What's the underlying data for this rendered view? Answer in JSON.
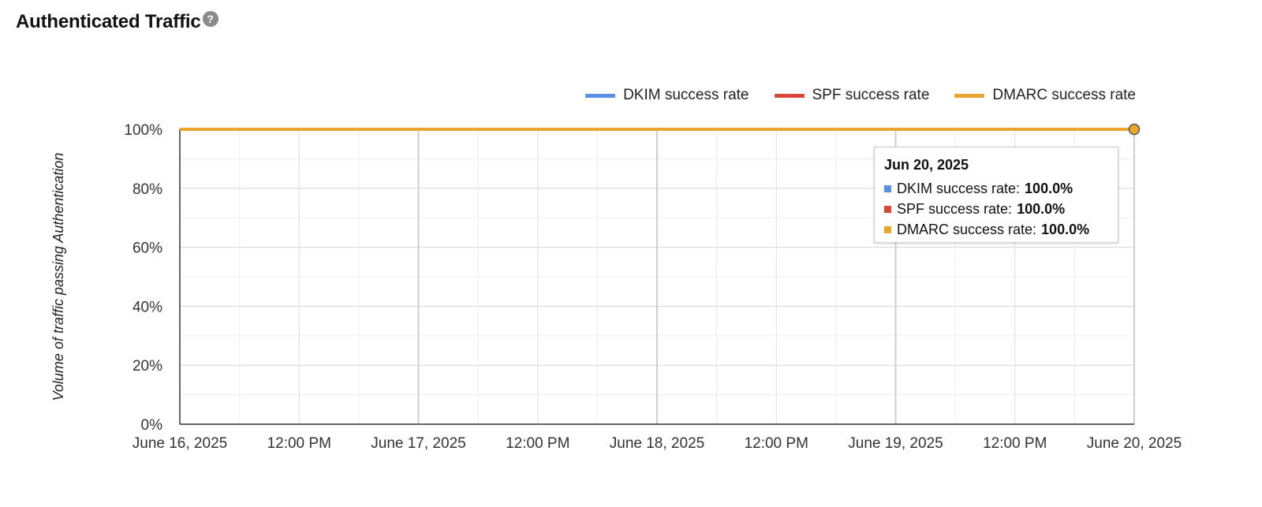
{
  "page": {
    "title": "Authenticated Traffic",
    "help_icon": "?"
  },
  "legend": [
    {
      "label": "DKIM success rate",
      "color": "#5b8fe6"
    },
    {
      "label": "SPF success rate",
      "color": "#d9473a"
    },
    {
      "label": "DMARC success rate",
      "color": "#eaa62a"
    }
  ],
  "tooltip": {
    "date": "Jun 20, 2025",
    "rows": [
      {
        "label": "DKIM success rate:",
        "value": "100.0%",
        "color": "#5b8fe6"
      },
      {
        "label": "SPF success rate:",
        "value": "100.0%",
        "color": "#d9473a"
      },
      {
        "label": "DMARC success rate:",
        "value": "100.0%",
        "color": "#eaa62a"
      }
    ]
  },
  "chart_data": {
    "type": "line",
    "ylabel": "Volume of traffic passing Authentication",
    "ylim": [
      0,
      100
    ],
    "y_ticks": [
      "0%",
      "20%",
      "40%",
      "60%",
      "80%",
      "100%"
    ],
    "x_tick_labels": [
      "June 16, 2025",
      "12:00 PM",
      "June 17, 2025",
      "12:00 PM",
      "June 18, 2025",
      "12:00 PM",
      "June 19, 2025",
      "12:00 PM",
      "June 20, 2025"
    ],
    "xlim": [
      "2025-06-16",
      "2025-06-20"
    ],
    "grid": true,
    "legend_position": "top-right",
    "x": [
      "2025-06-16",
      "2025-06-20"
    ],
    "series": [
      {
        "name": "DKIM success rate",
        "color": "#5b8fe6",
        "values": [
          100,
          100
        ]
      },
      {
        "name": "SPF success rate",
        "color": "#d9473a",
        "values": [
          100,
          100
        ]
      },
      {
        "name": "DMARC success rate",
        "color": "#eaa62a",
        "values": [
          100,
          100
        ]
      }
    ],
    "highlighted_point": {
      "x": "2025-06-20",
      "y": 100
    }
  }
}
